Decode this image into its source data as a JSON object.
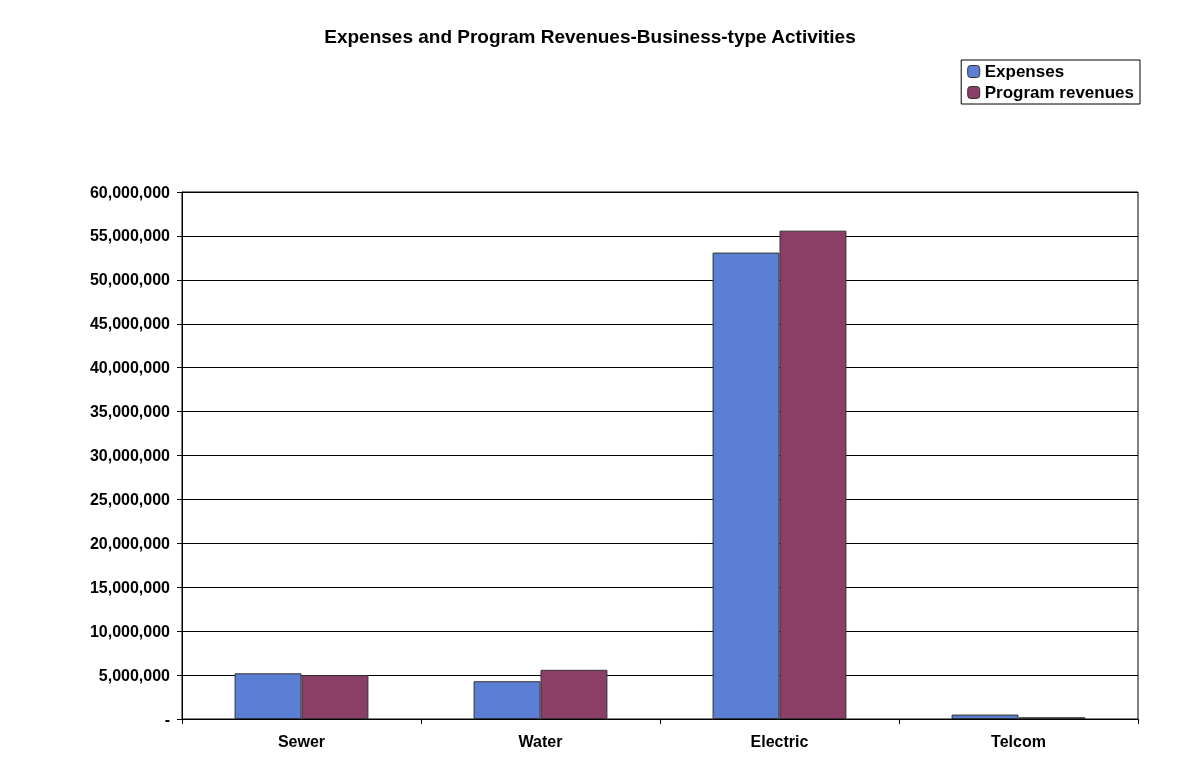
{
  "chart_data": {
    "type": "bar",
    "title": "Expenses and Program Revenues-Business-type Activities",
    "categories": [
      "Sewer",
      "Water",
      "Electric",
      "Telcom"
    ],
    "series": [
      {
        "name": "Expenses",
        "color": "#5b7fd4",
        "values": [
          5200000,
          4300000,
          53100000,
          500000
        ]
      },
      {
        "name": "Program revenues",
        "color": "#8b3f66",
        "values": [
          5000000,
          5600000,
          55600000,
          200000
        ]
      }
    ],
    "ylim": [
      0,
      60000000
    ],
    "yticks": [
      {
        "value": 0,
        "label": "-"
      },
      {
        "value": 5000000,
        "label": "5,000,000"
      },
      {
        "value": 10000000,
        "label": "10,000,000"
      },
      {
        "value": 15000000,
        "label": "15,000,000"
      },
      {
        "value": 20000000,
        "label": "20,000,000"
      },
      {
        "value": 25000000,
        "label": "25,000,000"
      },
      {
        "value": 30000000,
        "label": "30,000,000"
      },
      {
        "value": 35000000,
        "label": "35,000,000"
      },
      {
        "value": 40000000,
        "label": "40,000,000"
      },
      {
        "value": 45000000,
        "label": "45,000,000"
      },
      {
        "value": 50000000,
        "label": "50,000,000"
      },
      {
        "value": 55000000,
        "label": "55,000,000"
      },
      {
        "value": 60000000,
        "label": "60,000,000"
      }
    ],
    "grid": "y",
    "legend": "top right"
  }
}
